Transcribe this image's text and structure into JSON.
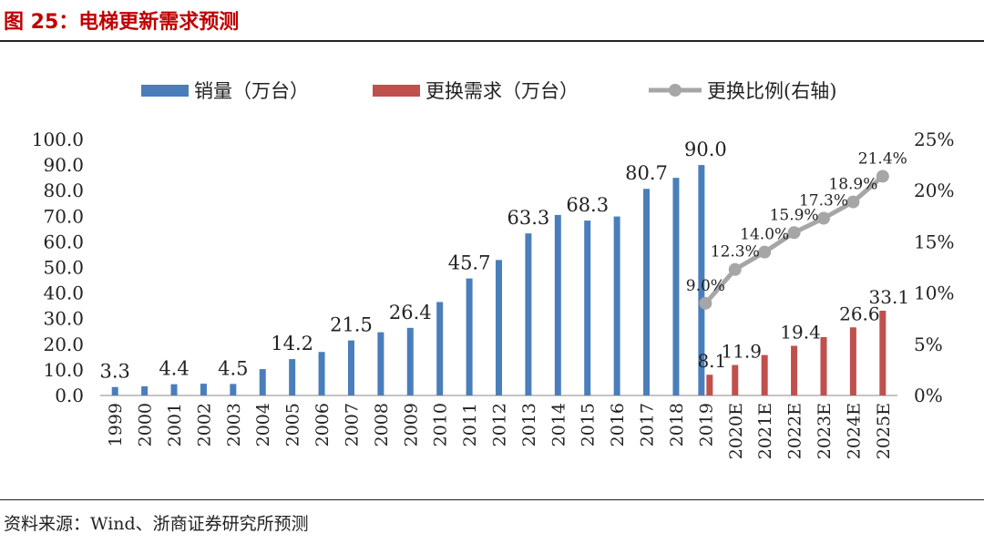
{
  "header": {
    "title": "图 25：电梯更新需求预测"
  },
  "footer": {
    "source": "资料来源：Wind、浙商证券研究所预测"
  },
  "colors": {
    "sales": "#4a7ebb",
    "demand": "#c0504d",
    "ratio": "#a6a6a6",
    "title": "#c00000"
  },
  "chart_data": {
    "type": "bar",
    "title": "",
    "categories": [
      "1999",
      "2000",
      "2001",
      "2002",
      "2003",
      "2004",
      "2005",
      "2006",
      "2007",
      "2008",
      "2009",
      "2010",
      "2011",
      "2012",
      "2013",
      "2014",
      "2015",
      "2016",
      "2017",
      "2018",
      "2019",
      "2020E",
      "2021E",
      "2022E",
      "2023E",
      "2024E",
      "2025E"
    ],
    "ylim": [
      0,
      100
    ],
    "y2lim": [
      0,
      25
    ],
    "yticks": [
      "0.0",
      "10.0",
      "20.0",
      "30.0",
      "40.0",
      "50.0",
      "60.0",
      "70.0",
      "80.0",
      "90.0",
      "100.0"
    ],
    "y2ticks": [
      "0%",
      "5%",
      "10%",
      "15%",
      "20%",
      "25%"
    ],
    "legend_position": "top",
    "series": [
      {
        "name": "销量（万台）",
        "kind": "bar",
        "axis": "left",
        "values": [
          3.3,
          3.6,
          4.4,
          4.6,
          4.5,
          10.3,
          14.2,
          17.0,
          21.5,
          24.7,
          26.4,
          36.5,
          45.7,
          52.9,
          63.3,
          70.5,
          68.3,
          69.9,
          80.7,
          85.0,
          90.0,
          null,
          null,
          null,
          null,
          null,
          null
        ],
        "data_labels": [
          "3.3",
          "",
          "4.4",
          "",
          "4.5",
          "",
          "14.2",
          "",
          "21.5",
          "",
          "26.4",
          "",
          "45.7",
          "",
          "63.3",
          "",
          "68.3",
          "",
          "80.7",
          "",
          "90.0",
          "",
          "",
          "",
          "",
          "",
          ""
        ]
      },
      {
        "name": "更换需求（万台）",
        "kind": "bar",
        "axis": "left",
        "values": [
          null,
          null,
          null,
          null,
          null,
          null,
          null,
          null,
          null,
          null,
          null,
          null,
          null,
          null,
          null,
          null,
          null,
          null,
          null,
          null,
          8.1,
          11.9,
          15.8,
          19.4,
          22.8,
          26.6,
          33.1
        ],
        "data_labels": [
          "",
          "",
          "",
          "",
          "",
          "",
          "",
          "",
          "",
          "",
          "",
          "",
          "",
          "",
          "",
          "",
          "",
          "",
          "",
          "",
          "8.1",
          "11.9",
          "",
          "19.4",
          "",
          "26.6",
          "33.1"
        ]
      },
      {
        "name": "更换比例(右轴)",
        "kind": "line",
        "axis": "right",
        "values": [
          null,
          null,
          null,
          null,
          null,
          null,
          null,
          null,
          null,
          null,
          null,
          null,
          null,
          null,
          null,
          null,
          null,
          null,
          null,
          null,
          9.0,
          12.3,
          14.0,
          15.9,
          17.3,
          18.9,
          21.4
        ],
        "data_labels": [
          "",
          "",
          "",
          "",
          "",
          "",
          "",
          "",
          "",
          "",
          "",
          "",
          "",
          "",
          "",
          "",
          "",
          "",
          "",
          "",
          "9.0%",
          "12.3%",
          "14.0%",
          "15.9%",
          "17.3%",
          "18.9%",
          "21.4%"
        ]
      }
    ]
  }
}
